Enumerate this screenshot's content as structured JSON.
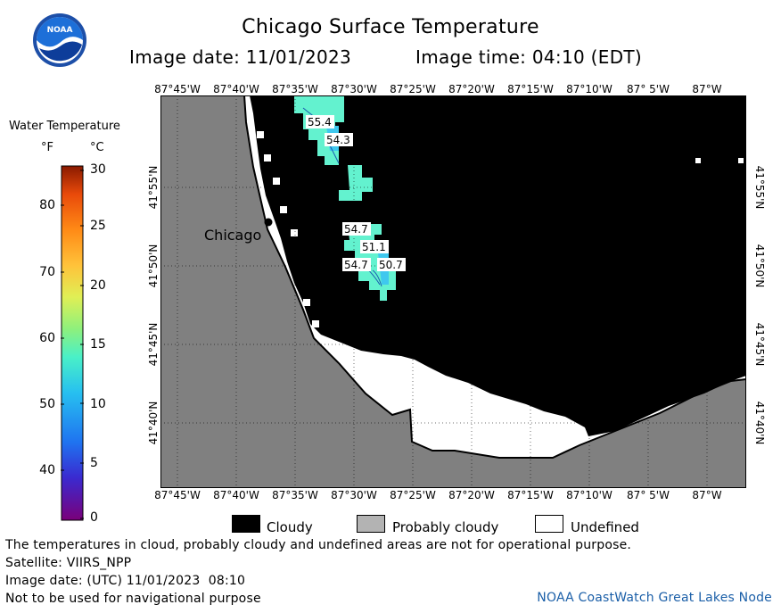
{
  "header": {
    "title": "Chicago Surface Temperature",
    "image_date": "Image date: 11/01/2023",
    "image_time": "Image time: 04:10 (EDT)"
  },
  "logo": {
    "text": "NOAA",
    "icon": "noaa-logo-icon"
  },
  "legend": {
    "title": "Water Temperature",
    "unit_f": "°F",
    "unit_c": "°C",
    "fahrenheit_ticks": [
      "80",
      "70",
      "60",
      "50",
      "40"
    ],
    "celsius_ticks": [
      "30",
      "25",
      "20",
      "15",
      "10",
      "5",
      "0"
    ],
    "colors": [
      "#7a007a",
      "#3a2ad0",
      "#1f73f0",
      "#27c0f0",
      "#49f0c8",
      "#8ef07c",
      "#e0ef55",
      "#ffc23a",
      "#ff8a16",
      "#e94a0a",
      "#8a1a00"
    ]
  },
  "map": {
    "top_lon_labels": [
      "87°45'W",
      "87°40'W",
      "87°35'W",
      "87°30'W",
      "87°25'W",
      "87°20'W",
      "87°15'W",
      "87°10'W",
      "87° 5'W",
      "87°W"
    ],
    "bottom_lon_labels": [
      "87°45'W",
      "87°40'W",
      "87°35'W",
      "87°30'W",
      "87°25'W",
      "87°20'W",
      "87°15'W",
      "87°10'W",
      "87° 5'W",
      "87°W"
    ],
    "lat_labels": [
      "41°55'N",
      "41°50'N",
      "41°45'N",
      "41°40'N"
    ],
    "city": "Chicago",
    "temp_labels": [
      "55.4",
      "54.3",
      "54.7",
      "51.1",
      "54.7",
      "50.7"
    ],
    "colors": {
      "land": "#808080",
      "cloud": "#000000",
      "probably_cloudy": "#b3b3b3",
      "undefined": "#ffffff",
      "water_warm": "#63f2cf",
      "water_cool": "#3fc8ee"
    }
  },
  "map_legend": {
    "items": [
      {
        "label": "Cloudy",
        "color": "#000000"
      },
      {
        "label": "Probably cloudy",
        "color": "#b3b3b3"
      },
      {
        "label": "Undefined",
        "color": "#ffffff"
      }
    ]
  },
  "footer": {
    "disclaimer": "The temperatures in cloud, probably cloudy and undefined areas are not for operational purpose.",
    "satellite": "Satellite: VIIRS_NPP",
    "utc_date": "Image date: (UTC) 11/01/2023  08:10",
    "nav_warning": "Not to be used for navigational purpose",
    "credit": "NOAA CoastWatch Great Lakes Node"
  }
}
